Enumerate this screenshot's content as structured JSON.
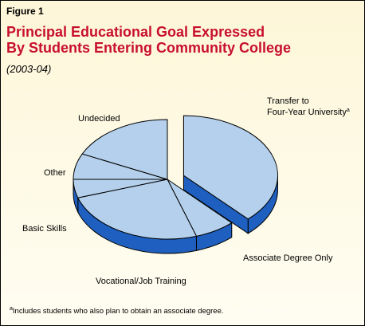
{
  "figure_label": "Figure 1",
  "title_line1": "Principal Educational Goal Expressed",
  "title_line2": "By Students Entering Community College",
  "subtitle": "(2003-04)",
  "footnote_marker": "a",
  "footnote_text": "Includes students who also plan to obtain an associate degree.",
  "colors": {
    "title": "#c8102e",
    "background_top": "#fdf6d8",
    "background_bottom": "#fffdf2",
    "slice_top": "#b4d0ec",
    "slice_side": "#1f5fbf",
    "outline": "#000000",
    "frame": "#000000"
  },
  "chart_data": {
    "type": "pie",
    "style": "3d-exploded",
    "title": "Principal Educational Goal Expressed By Students Entering Community College",
    "subtitle": "(2003-04)",
    "slices": [
      {
        "label_line1": "Transfer to",
        "label_line2": "Four-Year University",
        "superscript": "a",
        "value": 38,
        "exploded": true
      },
      {
        "label_line1": "Associate Degree Only",
        "label_line2": "",
        "superscript": "",
        "value": 7,
        "exploded": false
      },
      {
        "label_line1": "Vocational/Job Training",
        "label_line2": "",
        "superscript": "",
        "value": 25,
        "exploded": false
      },
      {
        "label_line1": "Basic Skills",
        "label_line2": "",
        "superscript": "",
        "value": 5,
        "exploded": false
      },
      {
        "label_line1": "Other",
        "label_line2": "",
        "superscript": "",
        "value": 7,
        "exploded": false
      },
      {
        "label_line1": "Undecided",
        "label_line2": "",
        "superscript": "",
        "value": 18,
        "exploded": false
      }
    ]
  }
}
